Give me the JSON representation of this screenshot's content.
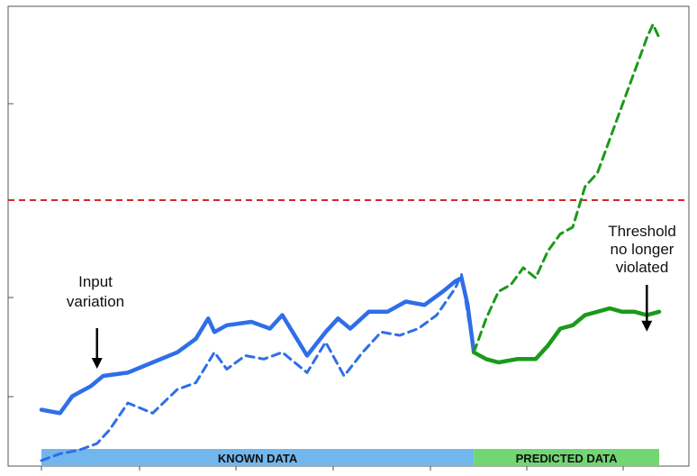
{
  "chart_data": {
    "type": "line",
    "title": "",
    "xlabel": "",
    "ylabel": "",
    "grid": false,
    "threshold": {
      "y": 0.6,
      "color": "#d62728",
      "style": "dashed"
    },
    "regions": [
      {
        "label": "KNOWN DATA",
        "x_range": [
          0.0,
          0.7
        ],
        "color": "#72b6ee"
      },
      {
        "label": "PREDICTED DATA",
        "x_range": [
          0.7,
          1.0
        ],
        "color": "#72d672"
      }
    ],
    "annotations": [
      {
        "text_lines": [
          "Input",
          "variation"
        ],
        "points_to": [
          0.09,
          0.08
        ]
      },
      {
        "text_lines": [
          "Threshold",
          "no longer",
          "violated"
        ],
        "points_to": [
          0.98,
          0.19
        ]
      }
    ],
    "series": [
      {
        "role": "known-solid",
        "color": "#2e6ee8",
        "style": "solid",
        "x": [
          0.0,
          0.03,
          0.05,
          0.08,
          0.1,
          0.14,
          0.18,
          0.22,
          0.25,
          0.27,
          0.28,
          0.3,
          0.34,
          0.37,
          0.39,
          0.43,
          0.46,
          0.48,
          0.5,
          0.53,
          0.56,
          0.59,
          0.62,
          0.65,
          0.67,
          0.68,
          0.69,
          0.7
        ],
        "y": [
          -0.02,
          -0.03,
          0.02,
          0.05,
          0.08,
          0.09,
          0.12,
          0.15,
          0.19,
          0.25,
          0.21,
          0.23,
          0.24,
          0.22,
          0.26,
          0.14,
          0.21,
          0.25,
          0.22,
          0.27,
          0.27,
          0.3,
          0.29,
          0.33,
          0.36,
          0.37,
          0.29,
          0.15
        ]
      },
      {
        "role": "known-dashed",
        "color": "#2e6ee8",
        "style": "dashed",
        "x": [
          0.0,
          0.03,
          0.06,
          0.09,
          0.11,
          0.14,
          0.18,
          0.22,
          0.25,
          0.28,
          0.3,
          0.33,
          0.36,
          0.39,
          0.43,
          0.46,
          0.49,
          0.52,
          0.55,
          0.58,
          0.61,
          0.64,
          0.67,
          0.68,
          0.7
        ],
        "y": [
          -0.17,
          -0.15,
          -0.14,
          -0.12,
          -0.08,
          0.0,
          -0.03,
          0.04,
          0.06,
          0.15,
          0.1,
          0.14,
          0.13,
          0.15,
          0.09,
          0.18,
          0.08,
          0.15,
          0.21,
          0.2,
          0.22,
          0.26,
          0.34,
          0.38,
          0.15
        ]
      },
      {
        "role": "predicted-solid",
        "color": "#1a9a1a",
        "style": "solid",
        "x": [
          0.7,
          0.72,
          0.74,
          0.77,
          0.8,
          0.82,
          0.84,
          0.86,
          0.88,
          0.9,
          0.92,
          0.94,
          0.96,
          0.98,
          1.0
        ],
        "y": [
          0.15,
          0.13,
          0.12,
          0.13,
          0.13,
          0.17,
          0.22,
          0.23,
          0.26,
          0.27,
          0.28,
          0.27,
          0.27,
          0.26,
          0.27
        ]
      },
      {
        "role": "predicted-dashed",
        "color": "#1a9a1a",
        "style": "dashed",
        "x": [
          0.7,
          0.72,
          0.74,
          0.76,
          0.78,
          0.8,
          0.82,
          0.84,
          0.86,
          0.88,
          0.9,
          0.92,
          0.94,
          0.96,
          0.98,
          0.99,
          1.0
        ],
        "y": [
          0.15,
          0.25,
          0.33,
          0.35,
          0.4,
          0.37,
          0.45,
          0.5,
          0.52,
          0.64,
          0.68,
          0.78,
          0.88,
          0.98,
          1.08,
          1.12,
          1.08
        ]
      }
    ]
  }
}
